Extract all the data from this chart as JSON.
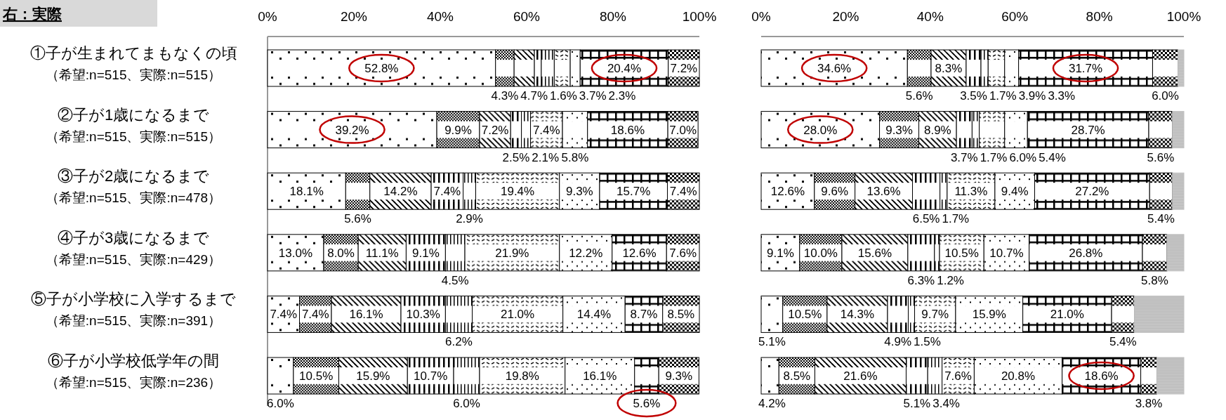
{
  "chart_data": [
    {
      "type": "bar",
      "orientation": "horizontal",
      "stacked": true,
      "title": "右：実際",
      "categories": [
        "①子が生まれてまもなくの頃（希望:n=515、実際:n=515）",
        "②子が1歳になるまで（希望:n=515、実際:n=515）",
        "③子が2歳になるまで（希望:n=515、実際:n=478）",
        "④子が3歳になるまで（希望:n=515、実際:n=429）",
        "⑤子が小学校に入学するまで（希望:n=515、実際:n=391）",
        "⑥子が小学校低学年の間（希望:n=515、実際:n=236）"
      ],
      "xlim": [
        0,
        100
      ],
      "xticks": [
        {
          "value": 0,
          "label": "0%"
        },
        {
          "value": 20,
          "label": "20%"
        },
        {
          "value": 40,
          "label": "40%"
        },
        {
          "value": 60,
          "label": "60%"
        },
        {
          "value": 80,
          "label": "80%"
        },
        {
          "value": 100,
          "label": "100%"
        }
      ],
      "series": [
        {
          "color": "#000000",
          "values": [
            52.8,
            39.2,
            18.1,
            13.0,
            7.4,
            6.0
          ],
          "value_labels": [
            "52.8%",
            "39.2%",
            "18.1%",
            "13.0%",
            "7.4%",
            "6.0%"
          ]
        },
        {
          "color": "#000000",
          "values": [
            4.3,
            9.9,
            5.6,
            8.0,
            7.4,
            10.5
          ],
          "value_labels": [
            "4.3%",
            "9.9%",
            "5.6%",
            "8.0%",
            "7.4%",
            "10.5%"
          ]
        },
        {
          "color": "#000000",
          "values": [
            4.7,
            7.2,
            14.2,
            11.1,
            16.1,
            15.9
          ],
          "value_labels": [
            "4.7%",
            "7.2%",
            "14.2%",
            "11.1%",
            "16.1%",
            "15.9%"
          ]
        },
        {
          "color": "#000000",
          "values": [
            1.6,
            2.5,
            7.4,
            9.1,
            10.3,
            10.7
          ],
          "value_labels": [
            "1.6%",
            "2.5%",
            "7.4%",
            "9.1%",
            "10.3%",
            "10.7%"
          ]
        },
        {
          "color": "#000000",
          "values": [
            3.0,
            2.1,
            2.9,
            4.5,
            6.2,
            6.0
          ],
          "value_labels": [
            null,
            "2.1%",
            "2.9%",
            "4.5%",
            "6.2%",
            "6.0%"
          ]
        },
        {
          "color": "#000000",
          "values": [
            3.7,
            7.4,
            19.4,
            21.9,
            21.0,
            19.8
          ],
          "value_labels": [
            "3.7%",
            "7.4%",
            "19.4%",
            "21.9%",
            "21.0%",
            "19.8%"
          ]
        },
        {
          "color": "#000000",
          "values": [
            2.3,
            5.8,
            9.3,
            12.2,
            14.4,
            16.1
          ],
          "value_labels": [
            "2.3%",
            "5.8%",
            "9.3%",
            "12.2%",
            "14.4%",
            "16.1%"
          ]
        },
        {
          "color": "#000000",
          "values": [
            20.4,
            18.6,
            15.7,
            12.6,
            8.7,
            5.6
          ],
          "value_labels": [
            "20.4%",
            "18.6%",
            "15.7%",
            "12.6%",
            "8.7%",
            "5.6%"
          ]
        },
        {
          "color": "#000000",
          "values": [
            7.2,
            7.0,
            7.4,
            7.6,
            8.5,
            9.3
          ],
          "value_labels": [
            "7.2%",
            "7.0%",
            "7.4%",
            "7.6%",
            "8.5%",
            "9.3%"
          ]
        }
      ]
    },
    {
      "type": "bar",
      "orientation": "horizontal",
      "stacked": true,
      "tick_labels": "x",
      "categories": [
        null,
        null,
        null,
        null,
        null,
        null
      ],
      "xlim": [
        0,
        100
      ],
      "xticks": [
        {
          "value": 0,
          "label": "0%"
        },
        {
          "value": 20,
          "label": "20%"
        },
        {
          "value": 40,
          "label": "40%"
        },
        {
          "value": 60,
          "label": "60%"
        },
        {
          "value": 80,
          "label": "80%"
        },
        {
          "value": 100,
          "label": "100%"
        }
      ],
      "series": [
        {
          "color": "#000000",
          "values": [
            34.6,
            28.0,
            12.6,
            9.1,
            5.1,
            4.2
          ],
          "value_labels": [
            "34.6%",
            "28.0%",
            "12.6%",
            "9.1%",
            "5.1%",
            "4.2%"
          ]
        },
        {
          "color": "#000000",
          "values": [
            5.6,
            9.3,
            9.6,
            10.0,
            10.5,
            8.5
          ],
          "value_labels": [
            "5.6%",
            "9.3%",
            "9.6%",
            "10.0%",
            "10.5%",
            "8.5%"
          ]
        },
        {
          "color": "#000000",
          "values": [
            8.3,
            8.9,
            13.6,
            15.6,
            14.3,
            21.6
          ],
          "value_labels": [
            "8.3%",
            "8.9%",
            "13.6%",
            "15.6%",
            "14.3%",
            "21.6%"
          ]
        },
        {
          "color": "#000000",
          "values": [
            3.5,
            3.7,
            6.5,
            6.3,
            4.9,
            5.1
          ],
          "value_labels": [
            "3.5%",
            "3.7%",
            "6.5%",
            "6.3%",
            "4.9%",
            "5.1%"
          ]
        },
        {
          "color": "#000000",
          "values": [
            1.7,
            1.7,
            1.7,
            1.2,
            1.5,
            3.4
          ],
          "value_labels": [
            "1.7%",
            "1.7%",
            "1.7%",
            "1.2%",
            "1.5%",
            "3.4%"
          ]
        },
        {
          "color": "#000000",
          "values": [
            3.9,
            6.0,
            11.3,
            10.5,
            9.7,
            7.6
          ],
          "value_labels": [
            "3.9%",
            "6.0%",
            "11.3%",
            "10.5%",
            "9.7%",
            "7.6%"
          ]
        },
        {
          "color": "#000000",
          "values": [
            3.3,
            5.4,
            9.4,
            10.7,
            15.9,
            20.8
          ],
          "value_labels": [
            "3.3%",
            "5.4%",
            "9.4%",
            "10.7%",
            "15.9%",
            "20.8%"
          ]
        },
        {
          "color": "#000000",
          "values": [
            31.7,
            28.7,
            27.2,
            26.8,
            21.0,
            18.6
          ],
          "value_labels": [
            "31.7%",
            "28.7%",
            "27.2%",
            "26.8%",
            "21.0%",
            "18.6%"
          ]
        },
        {
          "color": "#000000",
          "values": [
            6.0,
            5.6,
            5.4,
            5.8,
            5.4,
            3.8
          ],
          "value_labels": [
            "6.0%",
            "5.6%",
            "5.4%",
            "5.8%",
            "5.4%",
            "3.8%"
          ]
        },
        {
          "color": "#c0c0c0",
          "values": [
            1.4,
            2.7,
            2.7,
            4.0,
            11.7,
            6.4
          ],
          "value_labels": [
            null,
            null,
            null,
            null,
            null,
            null
          ]
        }
      ]
    }
  ]
}
